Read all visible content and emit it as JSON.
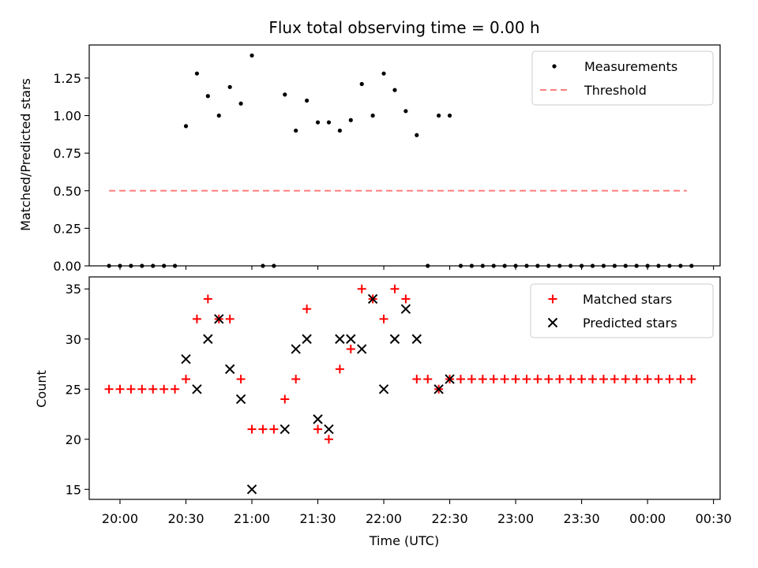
{
  "chart_data": [
    {
      "type": "scatter",
      "title": "Flux total observing time = 0.00 h",
      "xlabel": "",
      "ylabel": "Matched/Predicted stars",
      "ylim": [
        0,
        1.47
      ],
      "yticks": [
        0,
        0.25,
        0.5,
        0.75,
        1.0,
        1.25
      ],
      "ytick_labels": [
        "0.00",
        "0.25",
        "0.50",
        "0.75",
        "1.00",
        "1.25"
      ],
      "legend_position": "top-right",
      "series": [
        {
          "name": "Measurements",
          "marker": "point",
          "color": "#000000",
          "x": [
            "19:55",
            "19:60",
            "20:05",
            "20:10",
            "20:15",
            "20:20",
            "20:25",
            "20:30",
            "20:35",
            "20:40",
            "20:45",
            "20:50",
            "20:55",
            "21:00",
            "21:05",
            "21:10",
            "21:15",
            "21:20",
            "21:25",
            "21:30",
            "21:35",
            "21:40",
            "21:45",
            "21:50",
            "21:55",
            "22:00",
            "22:05",
            "22:10",
            "22:15",
            "22:20",
            "22:25",
            "22:30",
            "22:35",
            "22:40",
            "22:45",
            "22:50",
            "22:55",
            "23:00",
            "23:05",
            "23:10",
            "23:15",
            "23:20",
            "23:25",
            "23:30",
            "23:35",
            "23:40",
            "23:45",
            "23:50",
            "23:55",
            "00:00",
            "00:05",
            "00:10",
            "00:15",
            "00:20"
          ],
          "y": [
            0,
            0,
            0,
            0,
            0,
            0,
            0,
            0.93,
            1.28,
            1.13,
            1.0,
            1.19,
            1.08,
            1.4,
            0,
            0,
            1.14,
            0.9,
            1.1,
            0.955,
            0.955,
            0.9,
            0.97,
            1.21,
            1.0,
            1.28,
            1.17,
            1.03,
            0.87,
            0,
            1.0,
            1.0,
            0,
            0,
            0,
            0,
            0,
            0,
            0,
            0,
            0,
            0,
            0,
            0,
            0,
            0,
            0,
            0,
            0,
            0,
            0,
            0,
            0,
            0
          ]
        },
        {
          "name": "Threshold",
          "style": "dashed-line",
          "color": "#ff7f7f",
          "x": [
            "19:55",
            "00:15"
          ],
          "y": [
            0.5,
            0.5
          ]
        }
      ]
    },
    {
      "type": "scatter",
      "title": "",
      "xlabel": "Time (UTC)",
      "ylabel": "Count",
      "ylim": [
        14.0,
        36.2
      ],
      "yticks": [
        15,
        20,
        25,
        30,
        35
      ],
      "ytick_labels": [
        "15",
        "20",
        "25",
        "30",
        "35"
      ],
      "xlim": [
        "19:46",
        "00:33"
      ],
      "xticks": [
        "20:00",
        "20:30",
        "21:00",
        "21:30",
        "22:00",
        "22:30",
        "23:00",
        "23:30",
        "00:00",
        "00:30"
      ],
      "legend_position": "top-right",
      "series": [
        {
          "name": "Matched stars",
          "marker": "plus",
          "color": "#ff0000",
          "x": [
            "19:55",
            "20:00",
            "20:05",
            "20:10",
            "20:15",
            "20:20",
            "20:25",
            "20:30",
            "20:35",
            "20:40",
            "20:45",
            "20:50",
            "20:55",
            "21:00",
            "21:05",
            "21:10",
            "21:15",
            "21:20",
            "21:25",
            "21:30",
            "21:35",
            "21:40",
            "21:45",
            "21:50",
            "21:55",
            "22:00",
            "22:05",
            "22:10",
            "22:15",
            "22:20",
            "22:25",
            "22:30",
            "22:35",
            "22:40",
            "22:45",
            "22:50",
            "22:55",
            "23:00",
            "23:05",
            "23:10",
            "23:15",
            "23:20",
            "23:25",
            "23:30",
            "23:35",
            "23:40",
            "23:45",
            "23:50",
            "23:55",
            "00:00",
            "00:05",
            "00:10",
            "00:15",
            "00:20"
          ],
          "y": [
            25,
            25,
            25,
            25,
            25,
            25,
            25,
            26,
            32,
            34,
            32,
            32,
            26,
            21,
            21,
            21,
            24,
            26,
            33,
            21,
            20,
            27,
            29,
            35,
            34,
            32,
            35,
            34,
            26,
            26,
            25,
            26,
            26,
            26,
            26,
            26,
            26,
            26,
            26,
            26,
            26,
            26,
            26,
            26,
            26,
            26,
            26,
            26,
            26,
            26,
            26,
            26,
            26,
            26
          ]
        },
        {
          "name": "Predicted stars",
          "marker": "x",
          "color": "#000000",
          "x": [
            "20:30",
            "20:35",
            "20:40",
            "20:45",
            "20:50",
            "20:55",
            "21:00",
            "21:15",
            "21:20",
            "21:25",
            "21:30",
            "21:35",
            "21:40",
            "21:45",
            "21:50",
            "21:55",
            "22:00",
            "22:05",
            "22:10",
            "22:15",
            "22:25",
            "22:30"
          ],
          "y": [
            28,
            25,
            30,
            32,
            27,
            24,
            15,
            21,
            29,
            30,
            22,
            21,
            30,
            30,
            29,
            34,
            25,
            30,
            33,
            30,
            25,
            26
          ]
        }
      ]
    }
  ]
}
